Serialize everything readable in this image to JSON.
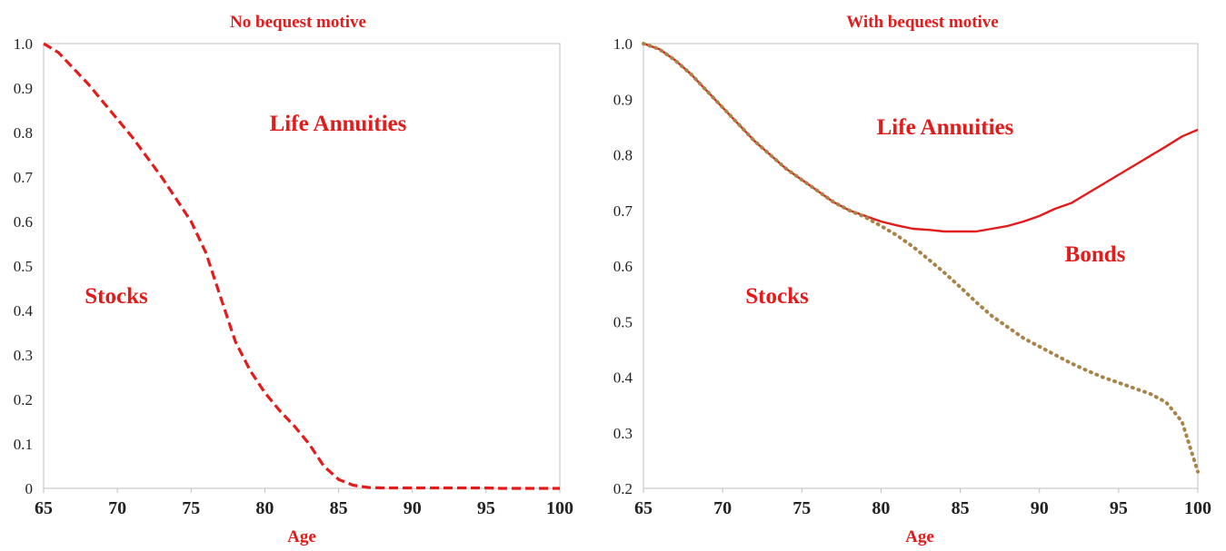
{
  "colors": {
    "accent_red": "#e31b1b",
    "bonds_line": "#a8844a",
    "axis": "#bfbfbf",
    "text": "#222222"
  },
  "chart_data": [
    {
      "type": "line",
      "title": "No bequest motive",
      "xlabel": "Age",
      "ylabel": "",
      "xlim": [
        65,
        100
      ],
      "ylim": [
        0,
        1.0
      ],
      "x_ticks": [
        "65",
        "70",
        "75",
        "80",
        "85",
        "90",
        "95",
        "100"
      ],
      "y_ticks": [
        "0",
        "0.1",
        "0.2",
        "0.3",
        "0.4",
        "0.5",
        "0.6",
        "0.7",
        "0.8",
        "0.9",
        "1.0"
      ],
      "region_labels": [
        "Life Annuities",
        "Stocks"
      ],
      "series": [
        {
          "style": "dashed",
          "color": "#e31b1b",
          "x": [
            65,
            66,
            67,
            68,
            69,
            70,
            71,
            72,
            73,
            74,
            75,
            76,
            77,
            78,
            79,
            80,
            81,
            82,
            83,
            84,
            85,
            86,
            87,
            88,
            89,
            90,
            91,
            92,
            93,
            94,
            95,
            96,
            97,
            98,
            99,
            100
          ],
          "y": [
            1.0,
            0.98,
            0.945,
            0.91,
            0.87,
            0.83,
            0.79,
            0.745,
            0.7,
            0.65,
            0.6,
            0.53,
            0.43,
            0.33,
            0.265,
            0.215,
            0.175,
            0.14,
            0.1,
            0.05,
            0.02,
            0.007,
            0.002,
            0.001,
            0.001,
            0.001,
            0.001,
            0.001,
            0.001,
            0.001,
            0.001,
            0.0,
            0.0,
            0.0,
            0.0,
            0.0
          ]
        }
      ]
    },
    {
      "type": "line",
      "title": "With bequest motive",
      "xlabel": "Age",
      "ylabel": "",
      "xlim": [
        65,
        100
      ],
      "ylim": [
        0.2,
        1.0
      ],
      "x_ticks": [
        "65",
        "70",
        "75",
        "80",
        "85",
        "90",
        "95",
        "100"
      ],
      "y_ticks": [
        "0.2",
        "0.3",
        "0.4",
        "0.5",
        "0.6",
        "0.7",
        "0.8",
        "0.9",
        "1.0"
      ],
      "region_labels": [
        "Life Annuities",
        "Bonds",
        "Stocks"
      ],
      "series": [
        {
          "style": "solid",
          "color": "#e31b1b",
          "x": [
            65,
            66,
            67,
            68,
            69,
            70,
            71,
            72,
            73,
            74,
            75,
            76,
            77,
            78,
            79,
            80,
            81,
            82,
            83,
            84,
            85,
            86,
            87,
            88,
            89,
            90,
            91,
            92,
            93,
            94,
            95,
            96,
            97,
            98,
            99,
            100
          ],
          "y": [
            1.0,
            0.99,
            0.97,
            0.945,
            0.915,
            0.885,
            0.855,
            0.825,
            0.8,
            0.775,
            0.755,
            0.735,
            0.715,
            0.7,
            0.69,
            0.68,
            0.673,
            0.667,
            0.665,
            0.662,
            0.662,
            0.662,
            0.667,
            0.672,
            0.68,
            0.69,
            0.703,
            0.713,
            0.73,
            0.747,
            0.764,
            0.781,
            0.798,
            0.815,
            0.833,
            0.845
          ]
        },
        {
          "style": "dotted",
          "color": "#a8844a",
          "x": [
            65,
            66,
            67,
            68,
            69,
            70,
            71,
            72,
            73,
            74,
            75,
            76,
            77,
            78,
            79,
            80,
            81,
            82,
            83,
            84,
            85,
            86,
            87,
            88,
            89,
            90,
            91,
            92,
            93,
            94,
            95,
            96,
            97,
            98,
            99,
            100
          ],
          "y": [
            1.0,
            0.99,
            0.97,
            0.945,
            0.915,
            0.885,
            0.855,
            0.825,
            0.8,
            0.775,
            0.755,
            0.735,
            0.715,
            0.7,
            0.688,
            0.672,
            0.655,
            0.635,
            0.612,
            0.588,
            0.562,
            0.535,
            0.51,
            0.49,
            0.47,
            0.455,
            0.44,
            0.425,
            0.412,
            0.4,
            0.39,
            0.38,
            0.37,
            0.355,
            0.32,
            0.23
          ]
        }
      ]
    }
  ]
}
